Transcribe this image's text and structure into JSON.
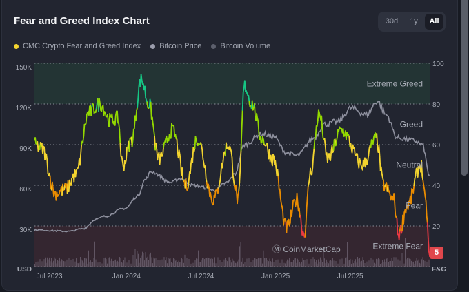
{
  "header": {
    "title": "Fear and Greed Index Chart",
    "ranges": [
      "30d",
      "1y",
      "All"
    ],
    "active_range": "All"
  },
  "legend": [
    {
      "label": "CMC Crypto Fear and Greed Index",
      "color": "#f3d42f"
    },
    {
      "label": "Bitcoin Price",
      "color": "#9a9cab"
    },
    {
      "label": "Bitcoin Volume",
      "color": "#5c5f6c"
    }
  ],
  "current_value": "5",
  "watermark": "CoinMarketCap",
  "chart_data": {
    "type": "line",
    "title": "Fear and Greed Index Chart",
    "x_start": "2023-06",
    "x_unit": "months since start",
    "x_ticks": [
      {
        "t": 1.2,
        "label": "Jul 2023"
      },
      {
        "t": 7.4,
        "label": "Jan 2024"
      },
      {
        "t": 13.4,
        "label": "Jul 2024"
      },
      {
        "t": 19.4,
        "label": "Jan 2025"
      },
      {
        "t": 25.4,
        "label": "Jul 2025"
      }
    ],
    "xlim": [
      0,
      31.8
    ],
    "left_axis": {
      "label": "USD",
      "ticks": [
        "150K",
        "120K",
        "90K",
        "60K",
        "30K"
      ],
      "ylim": [
        0,
        150000
      ]
    },
    "right_axis": {
      "label": "F&G",
      "ticks": [
        "100",
        "80",
        "60",
        "40",
        "20"
      ],
      "ylim": [
        0,
        100
      ]
    },
    "zones": [
      {
        "label": "Extreme Greed",
        "from": 80,
        "to": 100
      },
      {
        "label": "Greed",
        "from": 60,
        "to": 80
      },
      {
        "label": "Neutral",
        "from": 40,
        "to": 60
      },
      {
        "label": "Fear",
        "from": 20,
        "to": 40
      },
      {
        "label": "Extreme Fear",
        "from": 0,
        "to": 20
      }
    ],
    "series": [
      {
        "name": "CMC Crypto Fear and Greed Index",
        "axis": "right",
        "t": [
          0,
          0.6,
          1.7,
          2.5,
          3.3,
          4.4,
          5.3,
          6.1,
          6.7,
          7.1,
          7.8,
          8.6,
          9.2,
          10,
          11.1,
          12.2,
          13.1,
          14.4,
          15.6,
          16.4,
          16.9,
          17.5,
          18.3,
          19.2,
          20.3,
          21.1,
          21.7,
          22.2,
          22.9,
          23.6,
          24.7,
          26.4,
          27.5,
          28.1,
          28.9,
          29.3,
          30,
          31.1,
          31.5,
          31.8
        ],
        "values": [
          60,
          58,
          36,
          38,
          45,
          76,
          80,
          72,
          73,
          50,
          62,
          92,
          80,
          53,
          67,
          40,
          63,
          33,
          60,
          33,
          89,
          80,
          63,
          53,
          19,
          33,
          16,
          46,
          75,
          53,
          67,
          50,
          63,
          40,
          33,
          16,
          30,
          50,
          30,
          5
        ]
      },
      {
        "name": "Bitcoin Price",
        "axis": "left",
        "t": [
          0,
          2.8,
          3.9,
          5,
          5.6,
          7.3,
          8.3,
          8.9,
          9.4,
          11,
          11.7,
          12.8,
          13.9,
          14.4,
          15.5,
          16.1,
          16.9,
          18.3,
          19.2,
          20.3,
          21.1,
          22.5,
          23.3,
          24.4,
          25.5,
          26.7,
          27.6,
          28.3,
          29.2,
          30.5,
          31.2,
          31.8
        ],
        "values": [
          27000,
          26000,
          28000,
          35000,
          37000,
          43000,
          52000,
          64000,
          70000,
          62000,
          65000,
          60000,
          58000,
          56000,
          62000,
          68000,
          90000,
          98000,
          96000,
          84000,
          82000,
          95000,
          105000,
          107000,
          117000,
          112000,
          122000,
          112000,
          95000,
          93000,
          90000,
          67000
        ]
      }
    ]
  }
}
